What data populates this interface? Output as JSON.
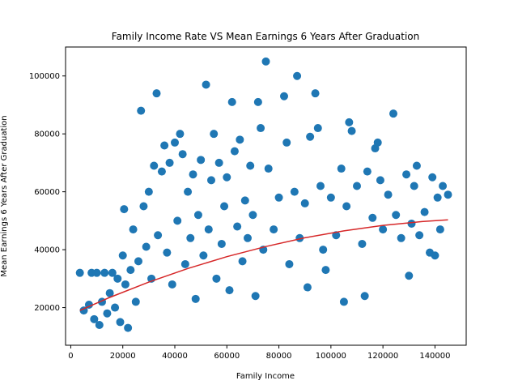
{
  "chart_data": {
    "type": "scatter",
    "title": "Family Income Rate VS Mean Earnings 6 Years After Graduation",
    "xlabel": "Family Income",
    "ylabel": "Mean Earnings 6 Years After Graduation",
    "xlim": [
      -2000,
      152000
    ],
    "ylim": [
      7000,
      110000
    ],
    "xticks": [
      0,
      20000,
      40000,
      60000,
      80000,
      100000,
      120000,
      140000
    ],
    "yticks": [
      20000,
      40000,
      60000,
      80000,
      100000
    ],
    "grid": false,
    "colors": {
      "points": "#1f77b4",
      "fit_line": "#d62728"
    },
    "series": [
      {
        "kind": "scatter",
        "points": [
          [
            3500,
            32000
          ],
          [
            5000,
            19000
          ],
          [
            7000,
            21000
          ],
          [
            8000,
            32000
          ],
          [
            9000,
            16000
          ],
          [
            10000,
            32000
          ],
          [
            11000,
            14000
          ],
          [
            12000,
            22000
          ],
          [
            13000,
            32000
          ],
          [
            14000,
            18000
          ],
          [
            15000,
            25000
          ],
          [
            16000,
            32000
          ],
          [
            17000,
            20000
          ],
          [
            18000,
            30000
          ],
          [
            19000,
            15000
          ],
          [
            20000,
            38000
          ],
          [
            20500,
            54000
          ],
          [
            21000,
            28000
          ],
          [
            22000,
            13000
          ],
          [
            23000,
            33000
          ],
          [
            24000,
            47000
          ],
          [
            25000,
            22000
          ],
          [
            26000,
            36000
          ],
          [
            27000,
            88000
          ],
          [
            28000,
            55000
          ],
          [
            29000,
            41000
          ],
          [
            30000,
            60000
          ],
          [
            31000,
            30000
          ],
          [
            32000,
            69000
          ],
          [
            33000,
            94000
          ],
          [
            33500,
            45000
          ],
          [
            35000,
            67000
          ],
          [
            36000,
            76000
          ],
          [
            37000,
            39000
          ],
          [
            38000,
            70000
          ],
          [
            39000,
            28000
          ],
          [
            40000,
            77000
          ],
          [
            41000,
            50000
          ],
          [
            42000,
            80000
          ],
          [
            43000,
            73000
          ],
          [
            44000,
            35000
          ],
          [
            45000,
            60000
          ],
          [
            46000,
            44000
          ],
          [
            47000,
            66000
          ],
          [
            48000,
            23000
          ],
          [
            49000,
            52000
          ],
          [
            50000,
            71000
          ],
          [
            51000,
            38000
          ],
          [
            52000,
            97000
          ],
          [
            53000,
            47000
          ],
          [
            54000,
            64000
          ],
          [
            55000,
            80000
          ],
          [
            56000,
            30000
          ],
          [
            57000,
            70000
          ],
          [
            58000,
            42000
          ],
          [
            59000,
            55000
          ],
          [
            60000,
            65000
          ],
          [
            61000,
            26000
          ],
          [
            62000,
            91000
          ],
          [
            63000,
            74000
          ],
          [
            64000,
            48000
          ],
          [
            65000,
            78000
          ],
          [
            66000,
            36000
          ],
          [
            67000,
            57000
          ],
          [
            68000,
            44000
          ],
          [
            69000,
            69000
          ],
          [
            70000,
            52000
          ],
          [
            71000,
            24000
          ],
          [
            72000,
            91000
          ],
          [
            73000,
            82000
          ],
          [
            74000,
            40000
          ],
          [
            75000,
            105000
          ],
          [
            76000,
            68000
          ],
          [
            78000,
            47000
          ],
          [
            80000,
            58000
          ],
          [
            82000,
            93000
          ],
          [
            83000,
            77000
          ],
          [
            84000,
            35000
          ],
          [
            86000,
            60000
          ],
          [
            87000,
            100000
          ],
          [
            88000,
            44000
          ],
          [
            90000,
            56000
          ],
          [
            91000,
            27000
          ],
          [
            92000,
            79000
          ],
          [
            94000,
            94000
          ],
          [
            95000,
            82000
          ],
          [
            96000,
            62000
          ],
          [
            97000,
            40000
          ],
          [
            98000,
            33000
          ],
          [
            100000,
            58000
          ],
          [
            102000,
            45000
          ],
          [
            104000,
            68000
          ],
          [
            105000,
            22000
          ],
          [
            106000,
            55000
          ],
          [
            107000,
            84000
          ],
          [
            108000,
            81000
          ],
          [
            110000,
            62000
          ],
          [
            112000,
            42000
          ],
          [
            113000,
            24000
          ],
          [
            114000,
            67000
          ],
          [
            116000,
            51000
          ],
          [
            117000,
            75000
          ],
          [
            118000,
            77000
          ],
          [
            119000,
            64000
          ],
          [
            120000,
            47000
          ],
          [
            122000,
            59000
          ],
          [
            124000,
            87000
          ],
          [
            125000,
            52000
          ],
          [
            127000,
            44000
          ],
          [
            129000,
            66000
          ],
          [
            130000,
            31000
          ],
          [
            131000,
            49000
          ],
          [
            132000,
            62000
          ],
          [
            133000,
            69000
          ],
          [
            134000,
            45000
          ],
          [
            136000,
            53000
          ],
          [
            138000,
            39000
          ],
          [
            139000,
            65000
          ],
          [
            140000,
            38000
          ],
          [
            141000,
            58000
          ],
          [
            142000,
            47000
          ],
          [
            143000,
            62000
          ],
          [
            145000,
            59000
          ]
        ]
      },
      {
        "kind": "line",
        "points": [
          [
            3500,
            19000
          ],
          [
            15000,
            23500
          ],
          [
            30000,
            28800
          ],
          [
            45000,
            33500
          ],
          [
            60000,
            37600
          ],
          [
            75000,
            41100
          ],
          [
            90000,
            44100
          ],
          [
            105000,
            46500
          ],
          [
            120000,
            48400
          ],
          [
            135000,
            49700
          ],
          [
            145000,
            50300
          ]
        ]
      }
    ]
  }
}
